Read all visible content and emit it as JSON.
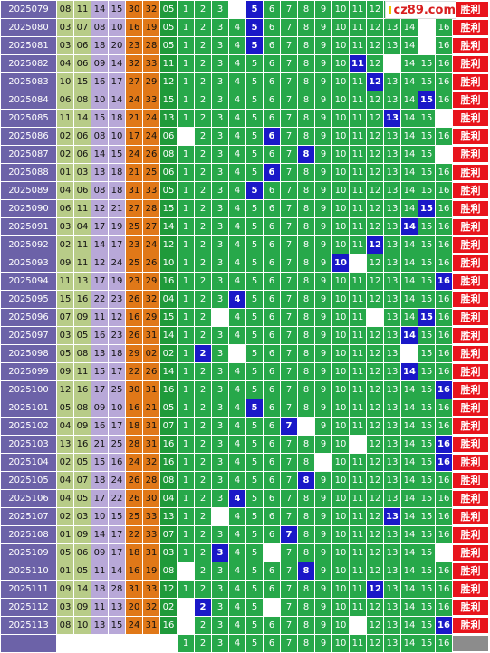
{
  "brand": {
    "logo_text": "cz89.com"
  },
  "result_label": "胜利",
  "ball_range": [
    "1",
    "2",
    "3",
    "4",
    "5",
    "6",
    "7",
    "8",
    "9",
    "10",
    "11",
    "12",
    "13",
    "14",
    "15",
    "16"
  ],
  "draws": [
    {
      "period": "2025079",
      "reds": [
        "08",
        "11",
        "14",
        "15",
        "30",
        "32"
      ],
      "blue": "05",
      "blue_num": 5
    },
    {
      "period": "2025080",
      "reds": [
        "03",
        "07",
        "08",
        "10",
        "16",
        "19"
      ],
      "blue": "05",
      "blue_num": 5
    },
    {
      "period": "2025081",
      "reds": [
        "03",
        "06",
        "18",
        "20",
        "23",
        "28"
      ],
      "blue": "05",
      "blue_num": 5
    },
    {
      "period": "2025082",
      "reds": [
        "04",
        "06",
        "09",
        "14",
        "32",
        "33"
      ],
      "blue": "11",
      "blue_num": 11
    },
    {
      "period": "2025083",
      "reds": [
        "10",
        "15",
        "16",
        "17",
        "27",
        "29"
      ],
      "blue": "12",
      "blue_num": 12
    },
    {
      "period": "2025084",
      "reds": [
        "06",
        "08",
        "10",
        "14",
        "24",
        "33"
      ],
      "blue": "15",
      "blue_num": 15
    },
    {
      "period": "2025085",
      "reds": [
        "11",
        "14",
        "15",
        "18",
        "21",
        "24"
      ],
      "blue": "13",
      "blue_num": 13
    },
    {
      "period": "2025086",
      "reds": [
        "02",
        "06",
        "08",
        "10",
        "17",
        "24"
      ],
      "blue": "06",
      "blue_num": 6
    },
    {
      "period": "2025087",
      "reds": [
        "02",
        "06",
        "14",
        "15",
        "24",
        "26"
      ],
      "blue": "08",
      "blue_num": 8
    },
    {
      "period": "2025088",
      "reds": [
        "01",
        "03",
        "13",
        "18",
        "21",
        "25"
      ],
      "blue": "06",
      "blue_num": 6
    },
    {
      "period": "2025089",
      "reds": [
        "04",
        "06",
        "08",
        "18",
        "31",
        "33"
      ],
      "blue": "05",
      "blue_num": 5
    },
    {
      "period": "2025090",
      "reds": [
        "06",
        "11",
        "12",
        "21",
        "27",
        "28"
      ],
      "blue": "15",
      "blue_num": 15
    },
    {
      "period": "2025091",
      "reds": [
        "03",
        "04",
        "17",
        "19",
        "25",
        "27"
      ],
      "blue": "14",
      "blue_num": 14
    },
    {
      "period": "2025092",
      "reds": [
        "02",
        "11",
        "14",
        "17",
        "23",
        "24"
      ],
      "blue": "12",
      "blue_num": 12
    },
    {
      "period": "2025093",
      "reds": [
        "09",
        "11",
        "12",
        "24",
        "25",
        "26"
      ],
      "blue": "10",
      "blue_num": 10
    },
    {
      "period": "2025094",
      "reds": [
        "11",
        "13",
        "17",
        "19",
        "23",
        "29"
      ],
      "blue": "16",
      "blue_num": 16
    },
    {
      "period": "2025095",
      "reds": [
        "15",
        "16",
        "22",
        "23",
        "26",
        "32"
      ],
      "blue": "04",
      "blue_num": 4
    },
    {
      "period": "2025096",
      "reds": [
        "07",
        "09",
        "11",
        "12",
        "16",
        "29"
      ],
      "blue": "15",
      "blue_num": 15
    },
    {
      "period": "2025097",
      "reds": [
        "03",
        "05",
        "16",
        "23",
        "26",
        "31"
      ],
      "blue": "14",
      "blue_num": 14
    },
    {
      "period": "2025098",
      "reds": [
        "05",
        "08",
        "13",
        "18",
        "29",
        "02"
      ],
      "blue": "02",
      "blue_num": 2
    },
    {
      "period": "2025099",
      "reds": [
        "09",
        "11",
        "15",
        "17",
        "22",
        "26"
      ],
      "blue": "14",
      "blue_num": 14
    },
    {
      "period": "2025100",
      "reds": [
        "12",
        "16",
        "17",
        "25",
        "30",
        "31"
      ],
      "blue": "16",
      "blue_num": 16
    },
    {
      "period": "2025101",
      "reds": [
        "05",
        "08",
        "09",
        "10",
        "16",
        "21"
      ],
      "blue": "05",
      "blue_num": 5
    },
    {
      "period": "2025102",
      "reds": [
        "04",
        "09",
        "16",
        "17",
        "18",
        "31"
      ],
      "blue": "07",
      "blue_num": 7
    },
    {
      "period": "2025103",
      "reds": [
        "13",
        "16",
        "21",
        "25",
        "28",
        "31"
      ],
      "blue": "16",
      "blue_num": 16
    },
    {
      "period": "2025104",
      "reds": [
        "02",
        "05",
        "15",
        "16",
        "24",
        "32"
      ],
      "blue": "16",
      "blue_num": 16
    },
    {
      "period": "2025105",
      "reds": [
        "04",
        "07",
        "18",
        "24",
        "26",
        "28"
      ],
      "blue": "08",
      "blue_num": 8
    },
    {
      "period": "2025106",
      "reds": [
        "04",
        "05",
        "17",
        "22",
        "26",
        "30"
      ],
      "blue": "04",
      "blue_num": 4
    },
    {
      "period": "2025107",
      "reds": [
        "02",
        "03",
        "10",
        "15",
        "25",
        "33"
      ],
      "blue": "13",
      "blue_num": 13
    },
    {
      "period": "2025108",
      "reds": [
        "01",
        "09",
        "14",
        "17",
        "22",
        "33"
      ],
      "blue": "07",
      "blue_num": 7
    },
    {
      "period": "2025109",
      "reds": [
        "05",
        "06",
        "09",
        "17",
        "18",
        "31"
      ],
      "blue": "03",
      "blue_num": 3
    },
    {
      "period": "2025110",
      "reds": [
        "01",
        "05",
        "11",
        "14",
        "16",
        "19"
      ],
      "blue": "08",
      "blue_num": 8
    },
    {
      "period": "2025111",
      "reds": [
        "09",
        "14",
        "18",
        "28",
        "31",
        "33"
      ],
      "blue": "12",
      "blue_num": 12
    },
    {
      "period": "2025112",
      "reds": [
        "03",
        "09",
        "11",
        "13",
        "20",
        "32"
      ],
      "blue": "02",
      "blue_num": 2
    },
    {
      "period": "2025113",
      "reds": [
        "08",
        "10",
        "13",
        "15",
        "24",
        "31"
      ],
      "blue": "16",
      "blue_num": 16
    }
  ],
  "blanks": {
    "2025079": [
      4,
      14
    ],
    "2025080": [
      15
    ],
    "2025081": [
      15
    ],
    "2025082": [
      13
    ],
    "2025083": [],
    "2025084": [],
    "2025085": [
      16
    ],
    "2025086": [
      1
    ],
    "2025087": [
      16
    ],
    "2025088": [],
    "2025089": [],
    "2025090": [],
    "2025091": [],
    "2025092": [],
    "2025093": [
      11
    ],
    "2025094": [],
    "2025095": [],
    "2025096": [
      3,
      12
    ],
    "2025097": [],
    "2025098": [
      4,
      14
    ],
    "2025099": [],
    "2025100": [],
    "2025101": [],
    "2025102": [
      8
    ],
    "2025103": [
      11
    ],
    "2025104": [
      9
    ],
    "2025105": [],
    "2025106": [],
    "2025107": [
      3
    ],
    "2025108": [],
    "2025109": [
      6,
      16
    ],
    "2025110": [
      1
    ],
    "2025111": [],
    "2025112": [
      1,
      6
    ],
    "2025113": [
      1,
      11
    ]
  }
}
